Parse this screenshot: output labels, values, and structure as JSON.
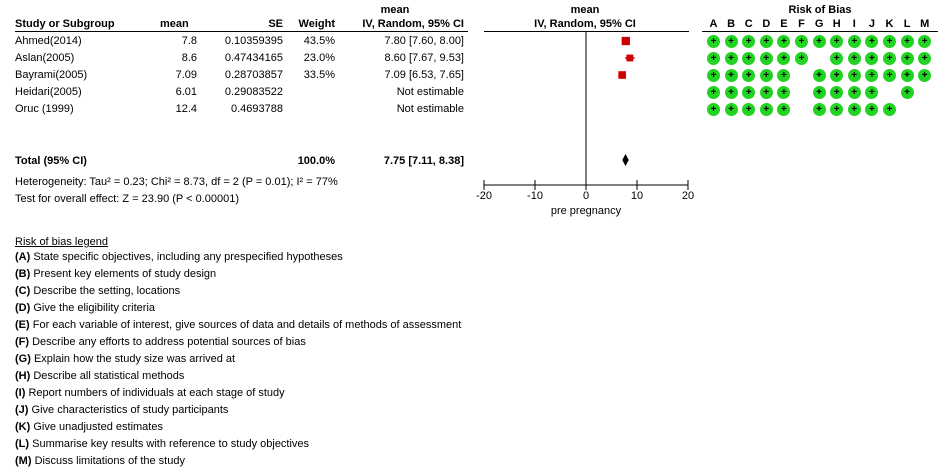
{
  "header": {
    "mean_top": "mean",
    "mean_top_plot": "mean",
    "rob_title": "Risk of Bias",
    "col_study": "Study or Subgroup",
    "col_mean": "mean",
    "col_se": "SE",
    "col_weight": "Weight",
    "col_ci": "IV, Random, 95% CI",
    "col_plot": "IV, Random, 95% CI"
  },
  "rob_letters": [
    "A",
    "B",
    "C",
    "D",
    "E",
    "F",
    "G",
    "H",
    "I",
    "J",
    "K",
    "L",
    "M"
  ],
  "studies": [
    {
      "name": "Ahmed(2014)",
      "mean": "7.8",
      "se": "0.10359395",
      "weight": "43.5%",
      "ci": "7.80 [7.60, 8.00]",
      "rob": [
        "+",
        "+",
        "+",
        "+",
        "+",
        "+",
        "+",
        "+",
        "+",
        "+",
        "+",
        "+",
        "+"
      ]
    },
    {
      "name": "Aslan(2005)",
      "mean": "8.6",
      "se": "0.47434165",
      "weight": "23.0%",
      "ci": "8.60 [7.67, 9.53]",
      "rob": [
        "+",
        "+",
        "+",
        "+",
        "+",
        "+",
        "",
        "+",
        "+",
        "+",
        "+",
        "+",
        "+"
      ]
    },
    {
      "name": "Bayrami(2005)",
      "mean": "7.09",
      "se": "0.28703857",
      "weight": "33.5%",
      "ci": "7.09 [6.53, 7.65]",
      "rob": [
        "+",
        "+",
        "+",
        "+",
        "+",
        "",
        "+",
        "+",
        "+",
        "+",
        "+",
        "+",
        "+"
      ]
    },
    {
      "name": "Heidari(2005)",
      "mean": "6.01",
      "se": "0.29083522",
      "weight": "",
      "ci": "Not estimable",
      "rob": [
        "+",
        "+",
        "+",
        "+",
        "+",
        "",
        "+",
        "+",
        "+",
        "+",
        "",
        "+",
        ""
      ]
    },
    {
      "name": "Oruc (1999)",
      "mean": "12.4",
      "se": "0.4693788",
      "weight": "",
      "ci": "Not estimable",
      "rob": [
        "+",
        "+",
        "+",
        "+",
        "+",
        "",
        "+",
        "+",
        "+",
        "+",
        "+",
        "",
        ""
      ]
    }
  ],
  "total": {
    "label": "Total (95% CI)",
    "weight": "100.0%",
    "ci": "7.75 [7.11, 8.38]"
  },
  "heterogeneity": "Heterogeneity: Tau² = 0.23; Chi² = 8.73, df = 2 (P = 0.01); I² = 77%",
  "overall_effect": "Test for overall effect: Z = 23.90 (P < 0.00001)",
  "legend": {
    "title": "Risk of bias legend",
    "items": [
      {
        "key": "(A)",
        "text": "State specific objectives, including any prespecified hypotheses"
      },
      {
        "key": "(B)",
        "text": "Present key elements of study design"
      },
      {
        "key": "(C)",
        "text": "Describe the setting, locations"
      },
      {
        "key": "(D)",
        "text": "Give the eligibility criteria"
      },
      {
        "key": "(E)",
        "text": "For each variable of interest, give sources of data and details of methods of assessment"
      },
      {
        "key": "(F)",
        "text": "Describe any efforts to address potential sources of bias"
      },
      {
        "key": "(G)",
        "text": "Explain how the study size was arrived at"
      },
      {
        "key": "(H)",
        "text": "Describe all statistical methods"
      },
      {
        "key": "(I)",
        "text": "Report numbers of individuals at each stage of study"
      },
      {
        "key": "(J)",
        "text": "Give characteristics of study participants"
      },
      {
        "key": "(K)",
        "text": "Give unadjusted estimates"
      },
      {
        "key": "(L)",
        "text": "Summarise key results with reference to study objectives"
      },
      {
        "key": "(M)",
        "text": "Discuss limitations of the study"
      }
    ]
  },
  "colors": {
    "marker": "#cc0000",
    "rob_low": "#22d322",
    "diamond": "#000000"
  },
  "chart_data": {
    "type": "forest",
    "xlabel": "pre pregnancy",
    "xlim": [
      -20,
      20
    ],
    "xticks": [
      -20,
      -10,
      0,
      10,
      20
    ],
    "tick_labels": [
      "-20",
      "-10",
      "0",
      "10",
      "20"
    ],
    "studies": [
      {
        "name": "Ahmed(2014)",
        "estimate": 7.8,
        "lower": 7.6,
        "upper": 8.0,
        "weight": 43.5
      },
      {
        "name": "Aslan(2005)",
        "estimate": 8.6,
        "lower": 7.67,
        "upper": 9.53,
        "weight": 23.0
      },
      {
        "name": "Bayrami(2005)",
        "estimate": 7.09,
        "lower": 6.53,
        "upper": 7.65,
        "weight": 33.5
      }
    ],
    "pooled": {
      "estimate": 7.75,
      "lower": 7.11,
      "upper": 8.38
    }
  }
}
